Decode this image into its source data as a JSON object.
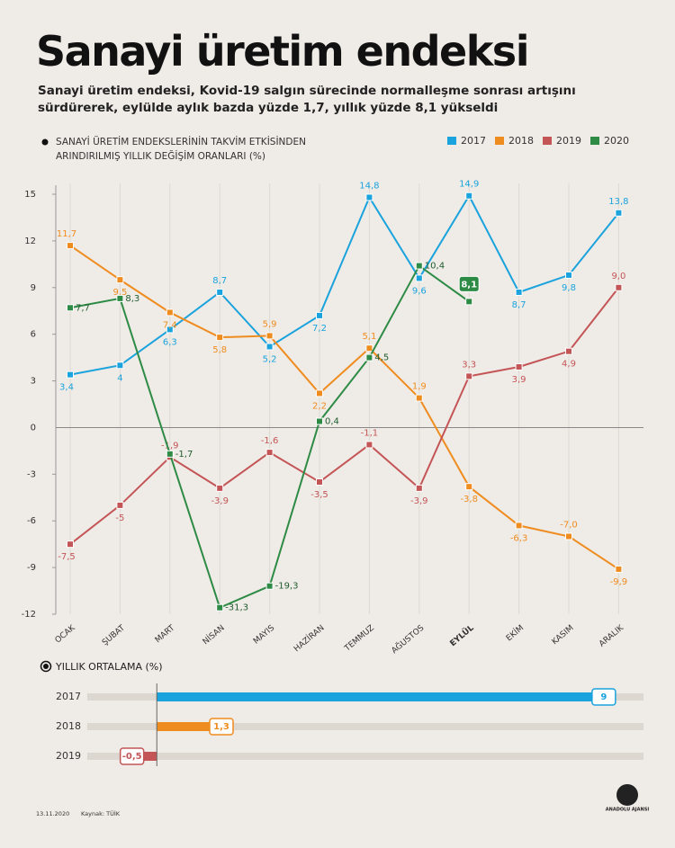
{
  "header": {
    "title": "Sanayi üretim endeksi",
    "subtitle": "Sanayi üretim endeksi, Kovid-19 salgın sürecinde normalleşme sonrası artışını sürdürerek, eylülde aylık bazda yüzde 1,7, yıllık yüzde 8,1 yükseldi"
  },
  "chart_data": [
    {
      "type": "line",
      "title": "SANAYİ ÜRETİM ENDEKSLERİNİN TAKVİM ETKİSİNDEN ARINDIRILMIŞ YILLIK DEĞİŞİM ORANLARI (%)",
      "categories": [
        "OCAK",
        "ŞUBAT",
        "MART",
        "NİSAN",
        "MAYIS",
        "HAZİRAN",
        "TEMMUZ",
        "AĞUSTOS",
        "EYLÜL",
        "EKİM",
        "KASIM",
        "ARALIK"
      ],
      "highlight": "EYLÜL",
      "ylim": [
        -12,
        15
      ],
      "yticks": [
        -12,
        -9,
        -6,
        -3,
        0,
        3,
        6,
        9,
        12,
        15
      ],
      "broken_below": -9,
      "legend": "top-right",
      "series": [
        {
          "name": "2017",
          "color": "#1aa3dd",
          "values": [
            3.4,
            4,
            6.3,
            8.7,
            5.2,
            7.2,
            14.8,
            9.6,
            14.9,
            8.7,
            9.8,
            13.8
          ],
          "value_labels": [
            "3,4",
            "4",
            "6,3",
            "8,7",
            "5,2",
            "7,2",
            "14,8",
            "9,6",
            "14,9",
            "8,7",
            "9,8",
            "13,8"
          ]
        },
        {
          "name": "2018",
          "color": "#ef8c1f",
          "values": [
            11.7,
            9.5,
            7.4,
            5.8,
            5.9,
            2.2,
            5.1,
            1.9,
            -3.8,
            -6.3,
            -7.0,
            -9.9
          ],
          "value_labels": [
            "11,7",
            "9,5",
            "7,4",
            "5,8",
            "5,9",
            "2,2",
            "5,1",
            "1,9",
            "-3,8",
            "-6,3",
            "-7,0",
            "-9,9"
          ]
        },
        {
          "name": "2019",
          "color": "#c45557",
          "values": [
            -7.5,
            -5,
            -1.9,
            -3.9,
            -1.6,
            -3.5,
            -1.1,
            -3.9,
            3.3,
            3.9,
            4.9,
            9.0
          ],
          "value_labels": [
            "-7,5",
            "-5",
            "-1,9",
            "-3,9",
            "-1,6",
            "-3,5",
            "-1,1",
            "-3,9",
            "3,3",
            "3,9",
            "4,9",
            "9,0"
          ]
        },
        {
          "name": "2020",
          "color": "#2e8b46",
          "values": [
            7.7,
            8.3,
            -1.7,
            -31.3,
            -19.3,
            0.4,
            4.5,
            10.4,
            8.1,
            null,
            null,
            null
          ],
          "value_labels": [
            "7,7",
            "8,3",
            "-1,7",
            "-31,3",
            "-19,3",
            "0,4",
            "4,5",
            "10,4",
            "8,1",
            null,
            null,
            null
          ]
        }
      ]
    },
    {
      "type": "hbar",
      "title": "YILLIK ORTALAMA (%)",
      "categories": [
        "2017",
        "2018",
        "2019"
      ],
      "values": [
        9,
        1.3,
        -0.5
      ],
      "value_labels": [
        "9",
        "1,3",
        "-0,5"
      ],
      "colors": [
        "#1aa3dd",
        "#ef8c1f",
        "#c45557"
      ],
      "xlim": [
        -1.4,
        9.8
      ]
    }
  ],
  "footer": {
    "date": "13.11.2020",
    "source": "Kaynak: TÜİK",
    "logo": "ANADOLU AJANSI"
  }
}
